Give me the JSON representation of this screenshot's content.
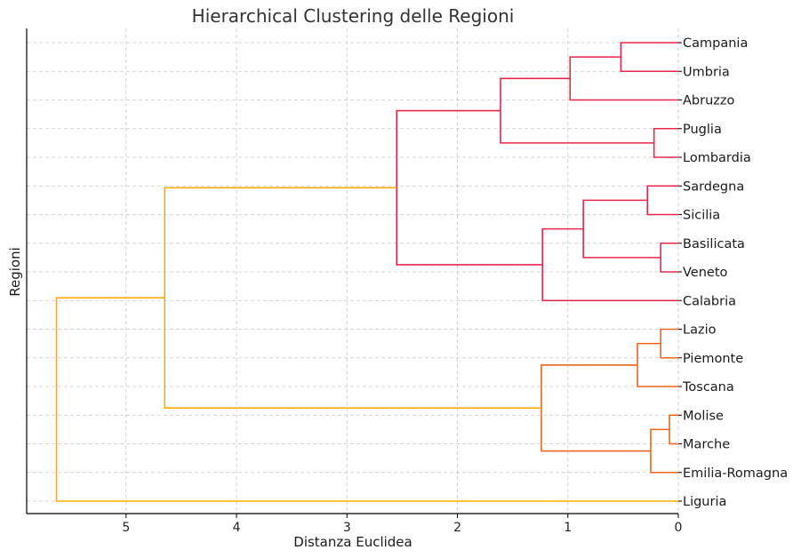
{
  "chart_data": {
    "type": "dendrogram",
    "title": "Hierarchical Clustering delle Regioni",
    "xlabel": "Distanza Euclidea",
    "ylabel": "Regioni",
    "orientation": "left",
    "xlim": [
      5.9,
      0
    ],
    "xticks": [
      5,
      4,
      3,
      2,
      1,
      0
    ],
    "grid": true,
    "colors": {
      "cluster_red": "#e8274b",
      "cluster_orange": "#f0641e",
      "above_threshold": "#ffaa00"
    },
    "leaves": [
      "Campania",
      "Umbria",
      "Abruzzo",
      "Puglia",
      "Lombardia",
      "Sardegna",
      "Sicilia",
      "Basilicata",
      "Veneto",
      "Calabria",
      "Lazio",
      "Piemonte",
      "Toscana",
      "Molise",
      "Marche",
      "Emilia-Romagna",
      "Liguria"
    ],
    "merges": [
      {
        "id": "m1",
        "children": [
          "Campania",
          "Umbria"
        ],
        "distance": 0.52,
        "color": "cluster_red"
      },
      {
        "id": "m2",
        "children": [
          "m1",
          "Abruzzo"
        ],
        "distance": 0.98,
        "color": "cluster_red"
      },
      {
        "id": "m3",
        "children": [
          "Puglia",
          "Lombardia"
        ],
        "distance": 0.22,
        "color": "cluster_red"
      },
      {
        "id": "m4",
        "children": [
          "m2",
          "m3"
        ],
        "distance": 1.61,
        "color": "cluster_red"
      },
      {
        "id": "m5",
        "children": [
          "Sardegna",
          "Sicilia"
        ],
        "distance": 0.28,
        "color": "cluster_red"
      },
      {
        "id": "m6",
        "children": [
          "Basilicata",
          "Veneto"
        ],
        "distance": 0.16,
        "color": "cluster_red"
      },
      {
        "id": "m7",
        "children": [
          "m5",
          "m6"
        ],
        "distance": 0.86,
        "color": "cluster_red"
      },
      {
        "id": "m8",
        "children": [
          "m7",
          "Calabria"
        ],
        "distance": 1.23,
        "color": "cluster_red"
      },
      {
        "id": "m9",
        "children": [
          "m4",
          "m8"
        ],
        "distance": 2.55,
        "color": "cluster_red"
      },
      {
        "id": "m10",
        "children": [
          "Lazio",
          "Piemonte"
        ],
        "distance": 0.16,
        "color": "cluster_orange"
      },
      {
        "id": "m11",
        "children": [
          "m10",
          "Toscana"
        ],
        "distance": 0.37,
        "color": "cluster_orange"
      },
      {
        "id": "m12",
        "children": [
          "Molise",
          "Marche"
        ],
        "distance": 0.08,
        "color": "cluster_orange"
      },
      {
        "id": "m13",
        "children": [
          "m12",
          "Emilia-Romagna"
        ],
        "distance": 0.25,
        "color": "cluster_orange"
      },
      {
        "id": "m14",
        "children": [
          "m11",
          "m13"
        ],
        "distance": 1.24,
        "color": "cluster_orange"
      },
      {
        "id": "m15",
        "children": [
          "m9",
          "m14"
        ],
        "distance": 4.65,
        "color": "above_threshold"
      },
      {
        "id": "m16",
        "children": [
          "m15",
          "Liguria"
        ],
        "distance": 5.63,
        "color": "above_threshold"
      }
    ]
  }
}
